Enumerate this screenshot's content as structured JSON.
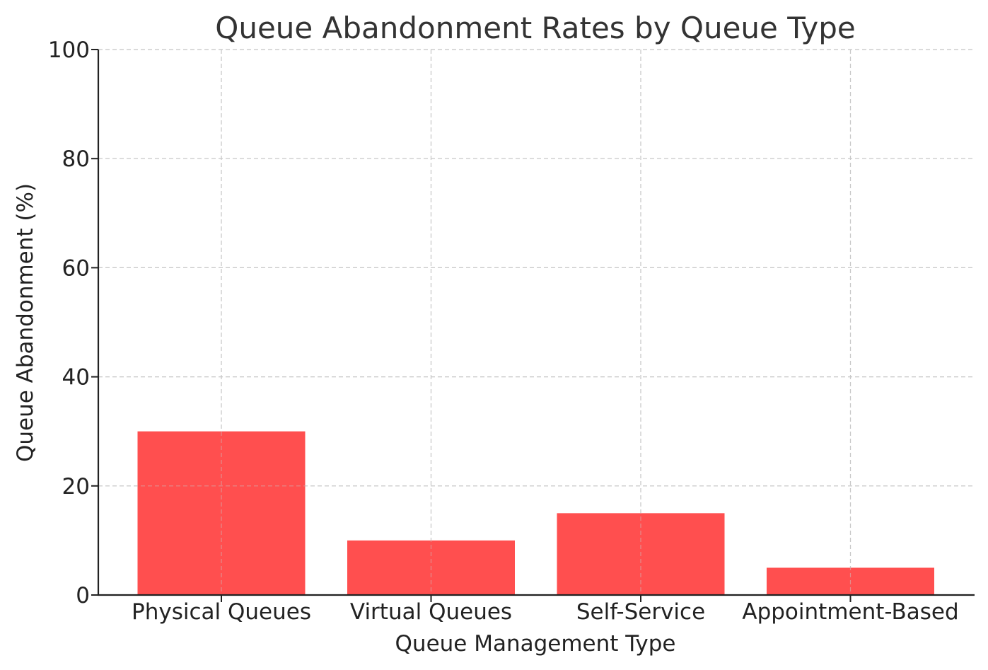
{
  "chart_data": {
    "type": "bar",
    "title": "Queue Abandonment Rates by Queue Type",
    "xlabel": "Queue Management Type",
    "ylabel": "Queue Abandonment (%)",
    "categories": [
      "Physical Queues",
      "Virtual Queues",
      "Self-Service",
      "Appointment-Based"
    ],
    "values": [
      30,
      10,
      15,
      5
    ],
    "ylim": [
      0,
      100
    ],
    "yticks": [
      0,
      20,
      40,
      60,
      80,
      100
    ],
    "grid": true,
    "bar_color": "#ff4f4f"
  }
}
